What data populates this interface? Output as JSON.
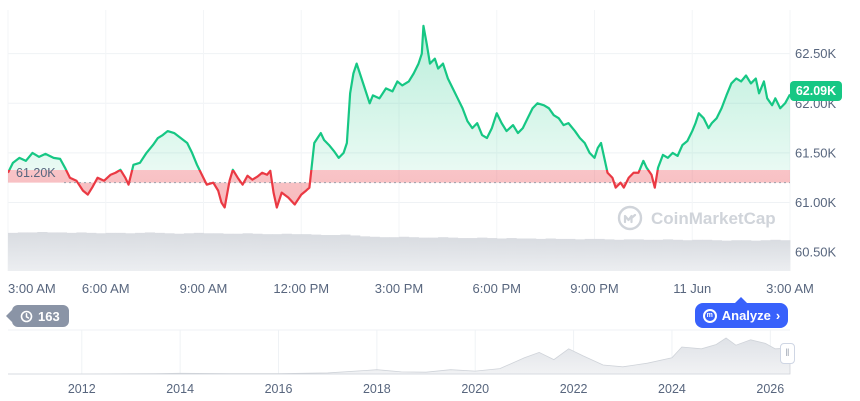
{
  "chart_data": {
    "type": "line",
    "baseline": 61.2,
    "baseline_label": "61.20K",
    "current_price_label": "62.09K",
    "ylim": [
      60.31,
      62.94
    ],
    "y_ticks": [
      62.5,
      62.0,
      61.5,
      61.0,
      60.5
    ],
    "y_tick_labels": [
      "62.50K",
      "62.00K",
      "61.50K",
      "61.00K",
      "60.50K"
    ],
    "xlim": [
      0,
      24
    ],
    "x_ticks": [
      0,
      3,
      6,
      9,
      12,
      15,
      18,
      21,
      24
    ],
    "x_tick_labels": [
      "3:00 AM",
      "6:00 AM",
      "9:00 AM",
      "12:00 PM",
      "3:00 PM",
      "6:00 PM",
      "9:00 PM",
      "11 Jun",
      "3:00 AM"
    ],
    "series": [
      {
        "color_up": "#16c784",
        "color_down": "#ea3943",
        "points": [
          [
            0.0,
            61.3
          ],
          [
            0.15,
            61.4
          ],
          [
            0.35,
            61.45
          ],
          [
            0.55,
            61.42
          ],
          [
            0.75,
            61.5
          ],
          [
            0.95,
            61.46
          ],
          [
            1.15,
            61.49
          ],
          [
            1.4,
            61.45
          ],
          [
            1.6,
            61.44
          ],
          [
            1.75,
            61.35
          ],
          [
            1.9,
            61.25
          ],
          [
            2.1,
            61.22
          ],
          [
            2.3,
            61.12
          ],
          [
            2.45,
            61.08
          ],
          [
            2.6,
            61.16
          ],
          [
            2.75,
            61.25
          ],
          [
            2.95,
            61.22
          ],
          [
            3.15,
            61.28
          ],
          [
            3.3,
            61.3
          ],
          [
            3.45,
            61.33
          ],
          [
            3.6,
            61.25
          ],
          [
            3.7,
            61.18
          ],
          [
            3.85,
            61.38
          ],
          [
            4.05,
            61.4
          ],
          [
            4.25,
            61.5
          ],
          [
            4.45,
            61.58
          ],
          [
            4.6,
            61.65
          ],
          [
            4.75,
            61.68
          ],
          [
            4.9,
            61.72
          ],
          [
            5.1,
            61.7
          ],
          [
            5.3,
            61.65
          ],
          [
            5.5,
            61.6
          ],
          [
            5.65,
            61.5
          ],
          [
            5.8,
            61.38
          ],
          [
            5.95,
            61.28
          ],
          [
            6.1,
            61.18
          ],
          [
            6.3,
            61.2
          ],
          [
            6.45,
            61.12
          ],
          [
            6.55,
            61.0
          ],
          [
            6.65,
            60.95
          ],
          [
            6.8,
            61.22
          ],
          [
            6.9,
            61.33
          ],
          [
            7.05,
            61.25
          ],
          [
            7.2,
            61.18
          ],
          [
            7.35,
            61.27
          ],
          [
            7.5,
            61.23
          ],
          [
            7.65,
            61.26
          ],
          [
            7.8,
            61.3
          ],
          [
            7.95,
            61.28
          ],
          [
            8.05,
            61.32
          ],
          [
            8.15,
            61.1
          ],
          [
            8.25,
            60.95
          ],
          [
            8.4,
            61.1
          ],
          [
            8.6,
            61.05
          ],
          [
            8.8,
            60.98
          ],
          [
            9.0,
            61.08
          ],
          [
            9.15,
            61.12
          ],
          [
            9.25,
            61.15
          ],
          [
            9.4,
            61.6
          ],
          [
            9.5,
            61.65
          ],
          [
            9.6,
            61.7
          ],
          [
            9.7,
            61.63
          ],
          [
            9.85,
            61.58
          ],
          [
            10.0,
            61.52
          ],
          [
            10.15,
            61.45
          ],
          [
            10.3,
            61.5
          ],
          [
            10.4,
            61.6
          ],
          [
            10.5,
            62.1
          ],
          [
            10.6,
            62.3
          ],
          [
            10.7,
            62.4
          ],
          [
            10.8,
            62.3
          ],
          [
            10.95,
            62.15
          ],
          [
            11.1,
            62.0
          ],
          [
            11.2,
            62.08
          ],
          [
            11.4,
            62.05
          ],
          [
            11.6,
            62.15
          ],
          [
            11.8,
            62.12
          ],
          [
            11.95,
            62.22
          ],
          [
            12.1,
            62.18
          ],
          [
            12.3,
            62.22
          ],
          [
            12.45,
            62.3
          ],
          [
            12.6,
            62.4
          ],
          [
            12.7,
            62.5
          ],
          [
            12.75,
            62.78
          ],
          [
            12.85,
            62.6
          ],
          [
            12.95,
            62.4
          ],
          [
            13.1,
            62.45
          ],
          [
            13.2,
            62.35
          ],
          [
            13.35,
            62.4
          ],
          [
            13.5,
            62.25
          ],
          [
            13.65,
            62.15
          ],
          [
            13.8,
            62.05
          ],
          [
            13.95,
            61.95
          ],
          [
            14.1,
            61.82
          ],
          [
            14.25,
            61.75
          ],
          [
            14.4,
            61.8
          ],
          [
            14.55,
            61.68
          ],
          [
            14.7,
            61.65
          ],
          [
            14.85,
            61.75
          ],
          [
            15.0,
            61.9
          ],
          [
            15.15,
            61.8
          ],
          [
            15.3,
            61.72
          ],
          [
            15.5,
            61.78
          ],
          [
            15.65,
            61.7
          ],
          [
            15.8,
            61.75
          ],
          [
            15.95,
            61.85
          ],
          [
            16.1,
            61.95
          ],
          [
            16.25,
            62.0
          ],
          [
            16.45,
            61.98
          ],
          [
            16.6,
            61.95
          ],
          [
            16.75,
            61.88
          ],
          [
            16.9,
            61.85
          ],
          [
            17.05,
            61.78
          ],
          [
            17.2,
            61.8
          ],
          [
            17.4,
            61.72
          ],
          [
            17.55,
            61.65
          ],
          [
            17.7,
            61.6
          ],
          [
            17.85,
            61.5
          ],
          [
            18.0,
            61.45
          ],
          [
            18.1,
            61.55
          ],
          [
            18.2,
            61.6
          ],
          [
            18.3,
            61.45
          ],
          [
            18.4,
            61.3
          ],
          [
            18.55,
            61.25
          ],
          [
            18.65,
            61.15
          ],
          [
            18.8,
            61.2
          ],
          [
            18.9,
            61.15
          ],
          [
            19.05,
            61.25
          ],
          [
            19.2,
            61.3
          ],
          [
            19.35,
            61.3
          ],
          [
            19.5,
            61.42
          ],
          [
            19.6,
            61.35
          ],
          [
            19.75,
            61.28
          ],
          [
            19.85,
            61.15
          ],
          [
            19.95,
            61.35
          ],
          [
            20.1,
            61.48
          ],
          [
            20.25,
            61.45
          ],
          [
            20.4,
            61.5
          ],
          [
            20.55,
            61.47
          ],
          [
            20.7,
            61.58
          ],
          [
            20.85,
            61.62
          ],
          [
            21.0,
            61.72
          ],
          [
            21.1,
            61.8
          ],
          [
            21.2,
            61.9
          ],
          [
            21.35,
            61.85
          ],
          [
            21.5,
            61.75
          ],
          [
            21.6,
            61.8
          ],
          [
            21.75,
            61.85
          ],
          [
            21.9,
            61.95
          ],
          [
            22.05,
            62.08
          ],
          [
            22.2,
            62.2
          ],
          [
            22.35,
            62.25
          ],
          [
            22.5,
            62.22
          ],
          [
            22.65,
            62.28
          ],
          [
            22.8,
            62.2
          ],
          [
            22.95,
            62.25
          ],
          [
            23.05,
            62.1
          ],
          [
            23.2,
            62.22
          ],
          [
            23.3,
            62.05
          ],
          [
            23.45,
            61.98
          ],
          [
            23.55,
            62.05
          ],
          [
            23.7,
            61.95
          ],
          [
            23.85,
            62.0
          ],
          [
            24.0,
            62.09
          ]
        ]
      }
    ],
    "volume": [
      0.88,
      0.89,
      0.89,
      0.9,
      0.89,
      0.89,
      0.88,
      0.89,
      0.88,
      0.87,
      0.88,
      0.88,
      0.87,
      0.88,
      0.89,
      0.88,
      0.87,
      0.86,
      0.87,
      0.88,
      0.87,
      0.87,
      0.86,
      0.86,
      0.87,
      0.86,
      0.85,
      0.85,
      0.86,
      0.85,
      0.85,
      0.84,
      0.83,
      0.83,
      0.84,
      0.82,
      0.8,
      0.79,
      0.78,
      0.78,
      0.79,
      0.78,
      0.77,
      0.77,
      0.78,
      0.77,
      0.76,
      0.76,
      0.77,
      0.76,
      0.75,
      0.76,
      0.75,
      0.75,
      0.74,
      0.75,
      0.74,
      0.74,
      0.73,
      0.74,
      0.74,
      0.73,
      0.72,
      0.73,
      0.73,
      0.72,
      0.72,
      0.73,
      0.72,
      0.71,
      0.72,
      0.72,
      0.71,
      0.7,
      0.71,
      0.71,
      0.7,
      0.71,
      0.72,
      0.71
    ],
    "watermark": "CoinMarketCap"
  },
  "navigator": {
    "x_tick_labels": [
      "2012",
      "2014",
      "2016",
      "2018",
      "2020",
      "2022",
      "2024",
      "2026"
    ],
    "x_ticks": [
      2012,
      2014,
      2016,
      2018,
      2020,
      2022,
      2024,
      2026
    ],
    "xlim": [
      2010.5,
      2026.4
    ],
    "history": [
      [
        2010.5,
        0.0
      ],
      [
        2012.0,
        0.0
      ],
      [
        2013.5,
        0.01
      ],
      [
        2014.0,
        0.02
      ],
      [
        2015.0,
        0.01
      ],
      [
        2016.0,
        0.01
      ],
      [
        2017.0,
        0.03
      ],
      [
        2017.8,
        0.1
      ],
      [
        2018.0,
        0.12
      ],
      [
        2018.5,
        0.06
      ],
      [
        2019.0,
        0.05
      ],
      [
        2019.5,
        0.12
      ],
      [
        2020.0,
        0.08
      ],
      [
        2020.5,
        0.15
      ],
      [
        2021.0,
        0.45
      ],
      [
        2021.3,
        0.6
      ],
      [
        2021.6,
        0.4
      ],
      [
        2021.9,
        0.7
      ],
      [
        2022.2,
        0.5
      ],
      [
        2022.6,
        0.25
      ],
      [
        2023.0,
        0.2
      ],
      [
        2023.5,
        0.3
      ],
      [
        2024.0,
        0.45
      ],
      [
        2024.2,
        0.75
      ],
      [
        2024.6,
        0.7
      ],
      [
        2024.9,
        0.82
      ],
      [
        2025.1,
        1.0
      ],
      [
        2025.3,
        0.8
      ],
      [
        2025.6,
        0.95
      ],
      [
        2025.9,
        0.85
      ],
      [
        2026.1,
        0.7
      ],
      [
        2026.4,
        0.72
      ]
    ],
    "history_badge": "163",
    "analyze_label": "Analyze"
  },
  "colors": {
    "up": "#16c784",
    "down": "#ea3943",
    "accent": "#3861fb",
    "grid": "#eff2f5",
    "text": "#58667e"
  }
}
